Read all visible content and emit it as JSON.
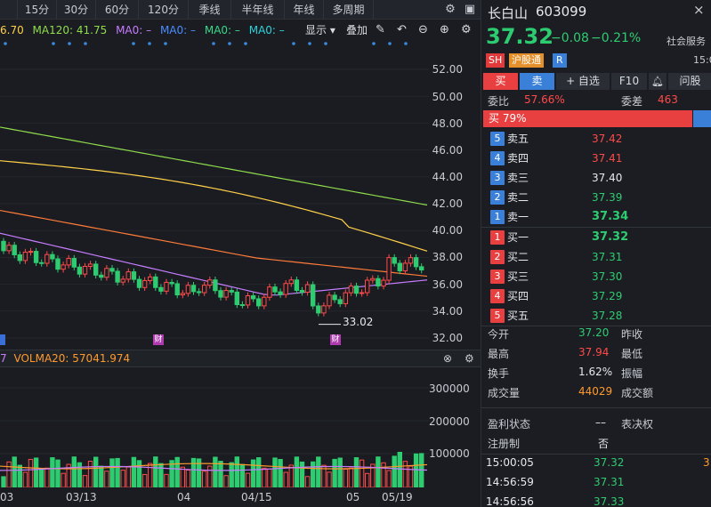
{
  "period_tabs": [
    "15分",
    "30分",
    "60分",
    "120分",
    "季线",
    "半年线",
    "年线",
    "多周期"
  ],
  "indicators": {
    "ma_prefix": "6.70",
    "ma120": "MA120: 41.75",
    "ma_a": "MA0: –",
    "ma_b": "MA0: –",
    "ma_c": "MA0: –",
    "ma_d": "MA0: –"
  },
  "chart_controls": {
    "display": "显示 ▾",
    "overlay": "叠加"
  },
  "price_axis": [
    "52.00",
    "50.00",
    "48.00",
    "46.00",
    "44.00",
    "42.00",
    "40.00",
    "38.00",
    "36.00",
    "34.00",
    "32.00"
  ],
  "low_annotation": "33.02",
  "event_markers": [
    "财",
    "财",
    "财"
  ],
  "volume": {
    "label": "VOLMA20: 57041.974",
    "prefix": "7"
  },
  "volume_axis": [
    "300000",
    "200000",
    "100000"
  ],
  "date_axis": [
    "03",
    "03/13",
    "04",
    "04/15",
    "05",
    "05/19"
  ],
  "stock": {
    "name": "长白山",
    "code": "603099",
    "price": "37.32",
    "change": "−0.08",
    "change_pct": "−0.21%",
    "industry": "社会服务",
    "tags": [
      "SH",
      "沪股通",
      "R"
    ],
    "time_partial": "15:0"
  },
  "actions": {
    "buy": "买",
    "sell": "卖",
    "watch": "+ 自选",
    "f10": "F10",
    "ask": "问股"
  },
  "order_ratio": {
    "weibi_label": "委比",
    "weibi_value": "57.66%",
    "weicha_label": "委差",
    "weicha_value": "463",
    "buy_pct": "买 79%"
  },
  "asks": [
    {
      "n": "5",
      "label": "卖五",
      "price": "37.42",
      "color": "#ff4a4a"
    },
    {
      "n": "4",
      "label": "卖四",
      "price": "37.41",
      "color": "#ff4a4a"
    },
    {
      "n": "3",
      "label": "卖三",
      "price": "37.40",
      "color": "#e6e8eb"
    },
    {
      "n": "2",
      "label": "卖二",
      "price": "37.39",
      "color": "#2ecc71"
    },
    {
      "n": "1",
      "label": "卖一",
      "price": "37.34",
      "color": "#2ecc71"
    }
  ],
  "bids": [
    {
      "n": "1",
      "label": "买一",
      "price": "37.32",
      "color": "#2ecc71"
    },
    {
      "n": "2",
      "label": "买二",
      "price": "37.31",
      "color": "#2ecc71"
    },
    {
      "n": "3",
      "label": "买三",
      "price": "37.30",
      "color": "#2ecc71"
    },
    {
      "n": "4",
      "label": "买四",
      "price": "37.29",
      "color": "#2ecc71"
    },
    {
      "n": "5",
      "label": "买五",
      "price": "37.28",
      "color": "#2ecc71"
    }
  ],
  "stats": [
    {
      "k1": "今开",
      "v1": "37.20",
      "c1": "#2ecc71",
      "k2": "昨收"
    },
    {
      "k1": "最高",
      "v1": "37.94",
      "c1": "#ff4a4a",
      "k2": "最低"
    },
    {
      "k1": "换手",
      "v1": "1.62%",
      "c1": "#e6e8eb",
      "k2": "振幅"
    },
    {
      "k1": "成交量",
      "v1": "44029",
      "c1": "#ff9a2e",
      "k2": "成交额"
    }
  ],
  "profit": {
    "k1": "盈利状态",
    "v1": "––",
    "k2": "表决权",
    "k3": "注册制",
    "v3": "否"
  },
  "ticks": [
    {
      "time": "15:00:05",
      "price": "37.32",
      "extra": "3"
    },
    {
      "time": "14:56:59",
      "price": "37.31",
      "extra": ""
    },
    {
      "time": "14:56:56",
      "price": "37.33",
      "extra": ""
    }
  ]
}
